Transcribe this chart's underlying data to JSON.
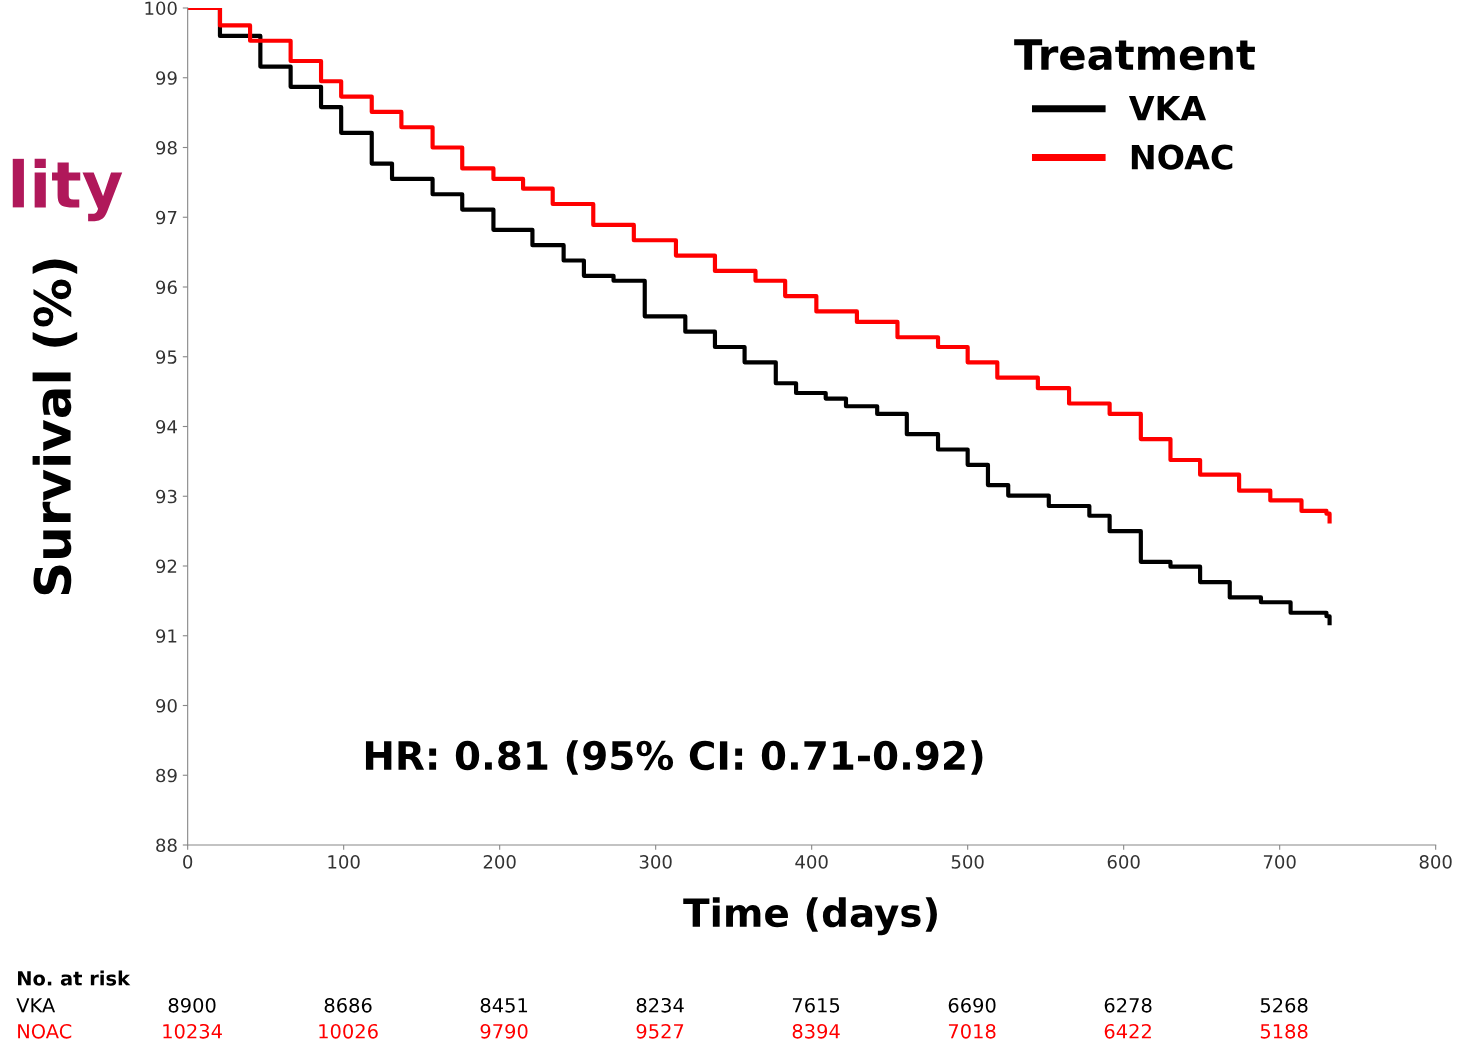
{
  "chart_data": {
    "type": "step",
    "xlabel": "Time (days)",
    "ylabel": "Survival (%)",
    "legend_title": "Treatment",
    "legend": "top right",
    "grid": false,
    "line_style": "solid",
    "marker": "none",
    "xlim": [
      0,
      800
    ],
    "xticks": [
      0,
      100,
      200,
      300,
      400,
      500,
      600,
      700,
      800
    ],
    "ylim": [
      88,
      100
    ],
    "yticks": [
      88,
      89,
      90,
      91,
      92,
      93,
      94,
      95,
      96,
      97,
      98,
      99,
      100
    ],
    "series": [
      {
        "name": "VKA",
        "color": "#000000",
        "x": [
          0,
          20.7,
          46.6,
          66,
          85.5,
          98.4,
          118,
          131,
          157,
          176,
          196,
          221,
          241,
          254,
          273,
          293,
          319,
          338,
          357,
          377,
          390,
          409,
          422,
          442,
          461,
          481,
          500,
          513,
          526,
          552,
          578,
          591,
          611,
          630,
          649,
          668,
          688,
          707,
          730,
          732
        ],
        "values": [
          100,
          99.6,
          99.16,
          98.87,
          98.58,
          98.21,
          97.77,
          97.55,
          97.33,
          97.11,
          96.82,
          96.6,
          96.38,
          96.16,
          96.09,
          95.58,
          95.36,
          95.14,
          94.92,
          94.62,
          94.48,
          94.4,
          94.29,
          94.18,
          93.89,
          93.67,
          93.45,
          93.16,
          93.01,
          92.86,
          92.72,
          92.5,
          92.06,
          91.99,
          91.77,
          91.55,
          91.48,
          91.33,
          91.28,
          91.18
        ]
      },
      {
        "name": "NOAC",
        "color": "#ff0000",
        "x": [
          0,
          20.7,
          40,
          66,
          85.5,
          98.4,
          118,
          137,
          157,
          176,
          196,
          215,
          234,
          260,
          286,
          313,
          338,
          364,
          383,
          403,
          429,
          455,
          481,
          500,
          519,
          545,
          565,
          591,
          611,
          630,
          649,
          674,
          694,
          714,
          730,
          732
        ],
        "values": [
          100,
          99.75,
          99.53,
          99.24,
          98.95,
          98.73,
          98.51,
          98.29,
          98,
          97.7,
          97.55,
          97.41,
          97.19,
          96.89,
          96.67,
          96.45,
          96.23,
          96.09,
          95.87,
          95.65,
          95.5,
          95.28,
          95.14,
          94.92,
          94.7,
          94.55,
          94.33,
          94.18,
          93.82,
          93.52,
          93.31,
          93.08,
          92.94,
          92.79,
          92.75,
          92.64
        ]
      }
    ],
    "annotations": [
      "lity",
      "HR: 0.81 (95% CI: 0.71-0.92)",
      "No. at risk",
      "VKA",
      "8900",
      "8686",
      "8451",
      "8234",
      "7615",
      "6690",
      "6278",
      "5268",
      "NOAC",
      "10234",
      "10026",
      "9790",
      "9527",
      "8394",
      "7018",
      "6422",
      "5188"
    ]
  }
}
